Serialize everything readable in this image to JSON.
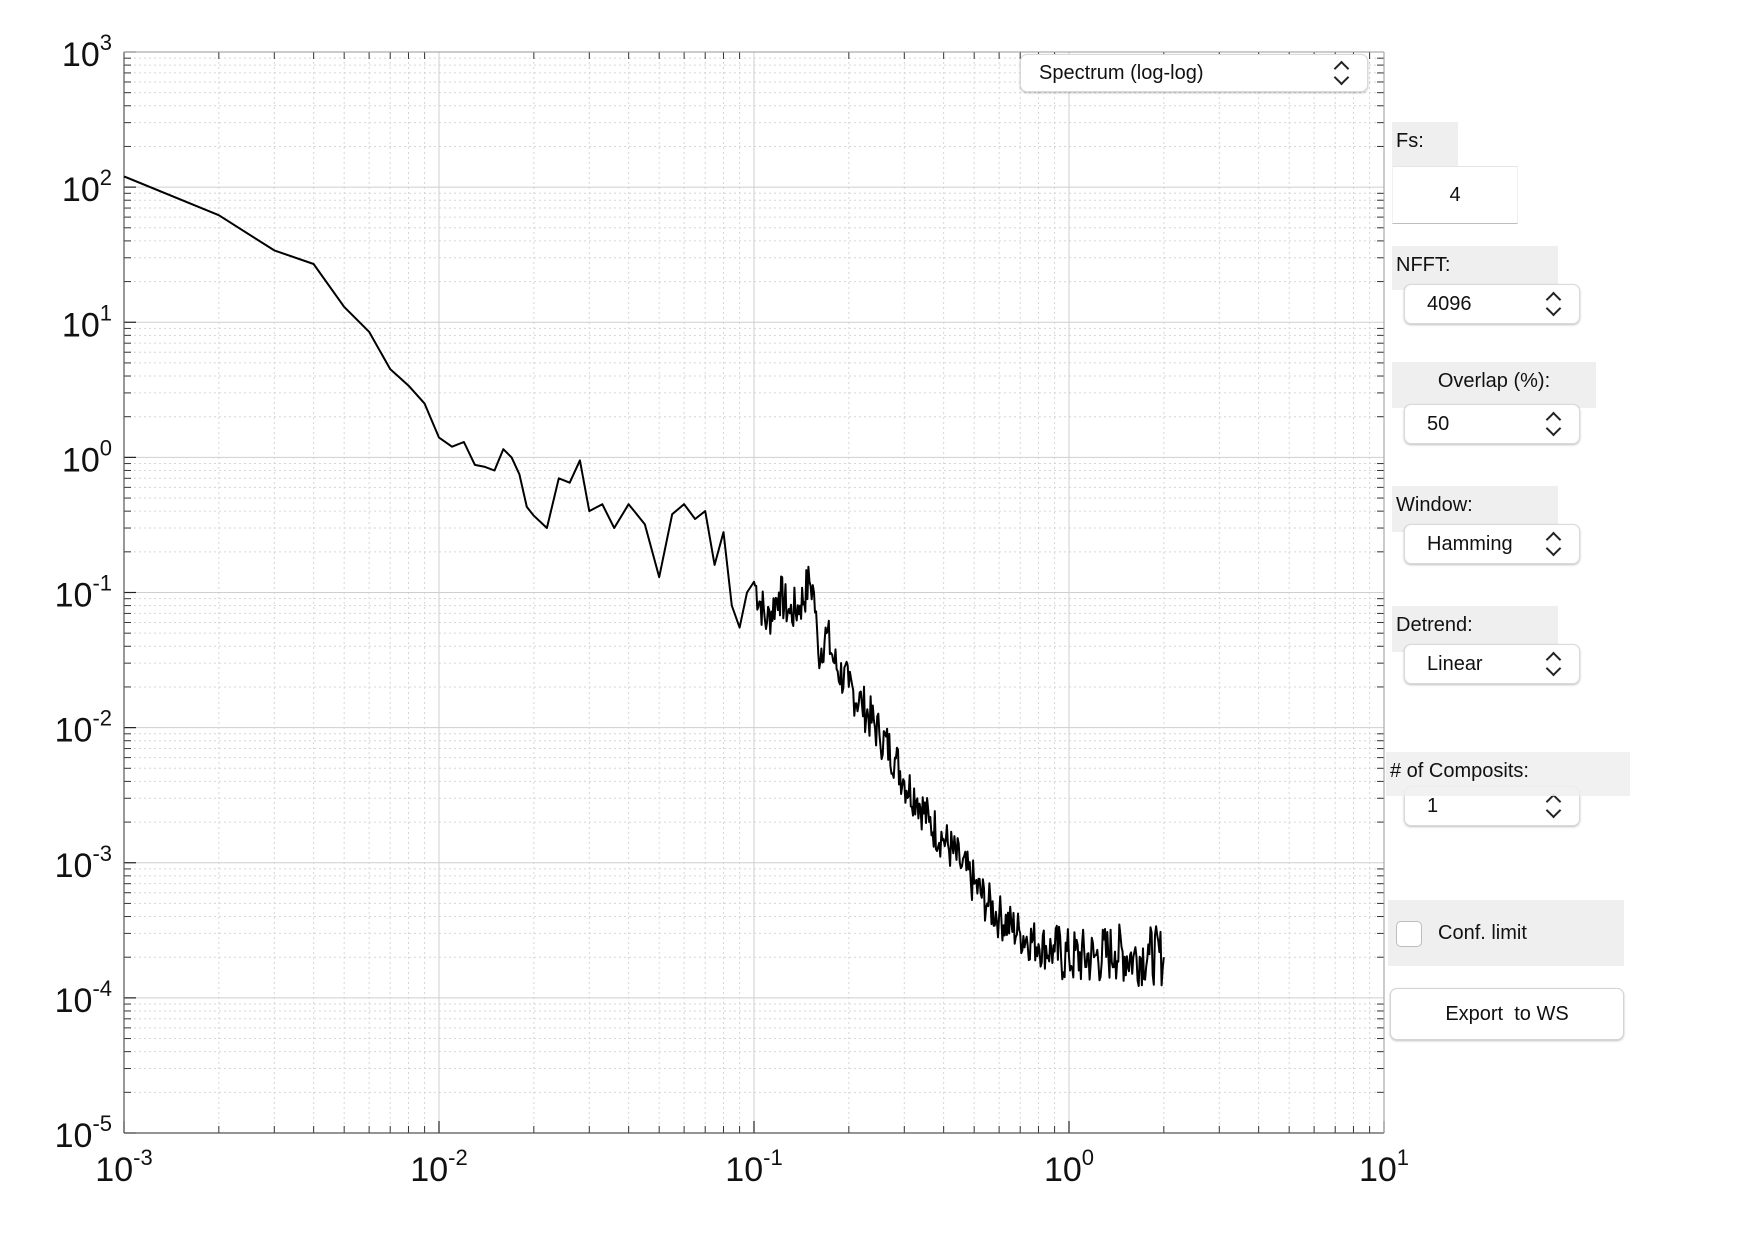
{
  "plot_selector": {
    "value": "Spectrum (log-log)"
  },
  "controls": {
    "fs": {
      "label": "Fs:",
      "value": "4"
    },
    "nfft": {
      "label": "NFFT:",
      "value": "4096"
    },
    "overlap": {
      "label": "Overlap (%):",
      "value": "50"
    },
    "window": {
      "label": "Window:",
      "value": "Hamming"
    },
    "detrend": {
      "label": "Detrend:",
      "value": "Linear"
    },
    "composits": {
      "label": "# of Composits:",
      "value": "1"
    },
    "conf_limit": {
      "label": "Conf. limit",
      "checked": false
    },
    "export_button": {
      "label": "Export  to WS"
    }
  },
  "chart_data": {
    "type": "line",
    "xscale": "log",
    "yscale": "log",
    "xlim": [
      0.001,
      10
    ],
    "ylim": [
      1e-05,
      1000
    ],
    "grid": true,
    "minor_grid": true,
    "x_ticks": [
      {
        "base": "10",
        "exp": "-3",
        "value": 0.001
      },
      {
        "base": "10",
        "exp": "-2",
        "value": 0.01
      },
      {
        "base": "10",
        "exp": "-1",
        "value": 0.1
      },
      {
        "base": "10",
        "exp": "0",
        "value": 1
      },
      {
        "base": "10",
        "exp": "1",
        "value": 10
      }
    ],
    "y_ticks": [
      {
        "base": "10",
        "exp": "3",
        "value": 1000
      },
      {
        "base": "10",
        "exp": "2",
        "value": 100
      },
      {
        "base": "10",
        "exp": "1",
        "value": 10
      },
      {
        "base": "10",
        "exp": "0",
        "value": 1
      },
      {
        "base": "10",
        "exp": "-1",
        "value": 0.1
      },
      {
        "base": "10",
        "exp": "-2",
        "value": 0.01
      },
      {
        "base": "10",
        "exp": "-3",
        "value": 0.001
      },
      {
        "base": "10",
        "exp": "-4",
        "value": 0.0001
      },
      {
        "base": "10",
        "exp": "-5",
        "value": 1e-05
      }
    ],
    "series": [
      {
        "color": "#000000",
        "x": [
          0.001,
          0.002,
          0.003,
          0.004,
          0.005,
          0.006,
          0.007,
          0.008,
          0.009,
          0.01,
          0.011,
          0.012,
          0.013,
          0.014,
          0.015,
          0.016,
          0.017,
          0.018,
          0.019,
          0.02,
          0.022,
          0.024,
          0.026,
          0.028,
          0.03,
          0.033,
          0.036,
          0.04,
          0.045,
          0.05,
          0.055,
          0.06,
          0.065,
          0.07,
          0.075,
          0.08,
          0.085,
          0.09,
          0.095,
          0.1,
          0.11,
          0.12,
          0.13,
          0.14,
          0.15,
          0.155,
          0.16,
          0.17,
          0.18,
          0.2,
          0.22,
          0.25,
          0.28,
          0.3,
          0.33,
          0.36,
          0.4,
          0.45,
          0.5,
          0.55,
          0.6,
          0.7,
          0.8,
          0.9,
          1.0,
          1.2,
          1.4,
          1.6,
          1.8,
          2.0
        ],
        "y": [
          120,
          62,
          34,
          27,
          13,
          8.5,
          4.5,
          3.4,
          2.5,
          1.4,
          1.2,
          1.3,
          0.88,
          0.85,
          0.8,
          1.15,
          1.0,
          0.75,
          0.43,
          0.37,
          0.3,
          0.7,
          0.65,
          0.95,
          0.4,
          0.45,
          0.3,
          0.45,
          0.32,
          0.13,
          0.38,
          0.45,
          0.35,
          0.4,
          0.16,
          0.28,
          0.08,
          0.055,
          0.1,
          0.12,
          0.06,
          0.1,
          0.07,
          0.08,
          0.12,
          0.1,
          0.035,
          0.05,
          0.03,
          0.02,
          0.015,
          0.009,
          0.006,
          0.004,
          0.003,
          0.002,
          0.0015,
          0.001,
          0.0007,
          0.0005,
          0.0004,
          0.0003,
          0.00025,
          0.00022,
          0.0002,
          0.0002,
          0.00022,
          0.0002,
          0.00021,
          0.0002
        ]
      }
    ]
  }
}
